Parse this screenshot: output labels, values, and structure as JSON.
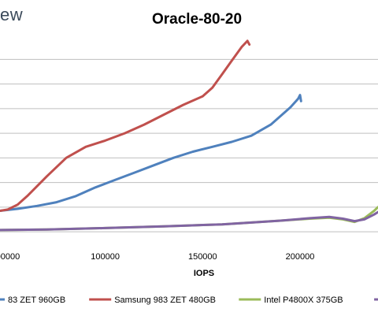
{
  "logo_text": "ew",
  "chart_data": {
    "type": "line",
    "title": "Oracle-80-20",
    "xlabel": "IOPS",
    "ylabel": "",
    "x_ticks": [
      "00000",
      "100000",
      "150000",
      "200000"
    ],
    "x_tick_values": [
      50000,
      100000,
      150000,
      200000
    ],
    "xlim": [
      46000,
      240000
    ],
    "ylim": [
      -0.5,
      7.5
    ],
    "grid": "horizontal",
    "legend_position": "bottom",
    "series": [
      {
        "name": "83 ZET 960GB",
        "color": "#4f81bd",
        "x": [
          46000,
          55000,
          65000,
          75000,
          85000,
          95000,
          105000,
          115000,
          125000,
          135000,
          145000,
          155000,
          165000,
          175000,
          185000,
          195000,
          199000,
          200000,
          200500
        ],
        "y": [
          0.7,
          0.78,
          0.9,
          1.05,
          1.3,
          1.65,
          1.95,
          2.25,
          2.55,
          2.85,
          3.1,
          3.3,
          3.5,
          3.75,
          4.2,
          4.9,
          5.25,
          5.4,
          5.15
        ]
      },
      {
        "name": "Samsung 983 ZET 480GB",
        "color": "#c0504d",
        "x": [
          46000,
          50000,
          55000,
          60000,
          70000,
          80000,
          90000,
          100000,
          110000,
          120000,
          130000,
          140000,
          150000,
          155000,
          160000,
          165000,
          170000,
          173000,
          174000
        ],
        "y": [
          0.7,
          0.75,
          0.95,
          1.3,
          2.1,
          2.85,
          3.3,
          3.55,
          3.85,
          4.2,
          4.6,
          5.0,
          5.35,
          5.7,
          6.25,
          6.8,
          7.35,
          7.6,
          7.45
        ]
      },
      {
        "name": "Intel P4800X 375GB",
        "color": "#9bbb59",
        "x": [
          46000,
          70000,
          100000,
          130000,
          160000,
          190000,
          205000,
          215000,
          222000,
          228000,
          233000,
          238000,
          240000
        ],
        "y": [
          -0.08,
          -0.06,
          0.0,
          0.07,
          0.15,
          0.3,
          0.38,
          0.42,
          0.35,
          0.25,
          0.4,
          0.7,
          0.85
        ]
      },
      {
        "name": "",
        "color": "#8064a2",
        "x": [
          46000,
          70000,
          100000,
          130000,
          160000,
          190000,
          205000,
          215000,
          222000,
          228000,
          233000,
          238000,
          240000
        ],
        "y": [
          -0.08,
          -0.06,
          0.0,
          0.07,
          0.15,
          0.3,
          0.4,
          0.45,
          0.38,
          0.28,
          0.35,
          0.55,
          0.65
        ]
      }
    ]
  }
}
